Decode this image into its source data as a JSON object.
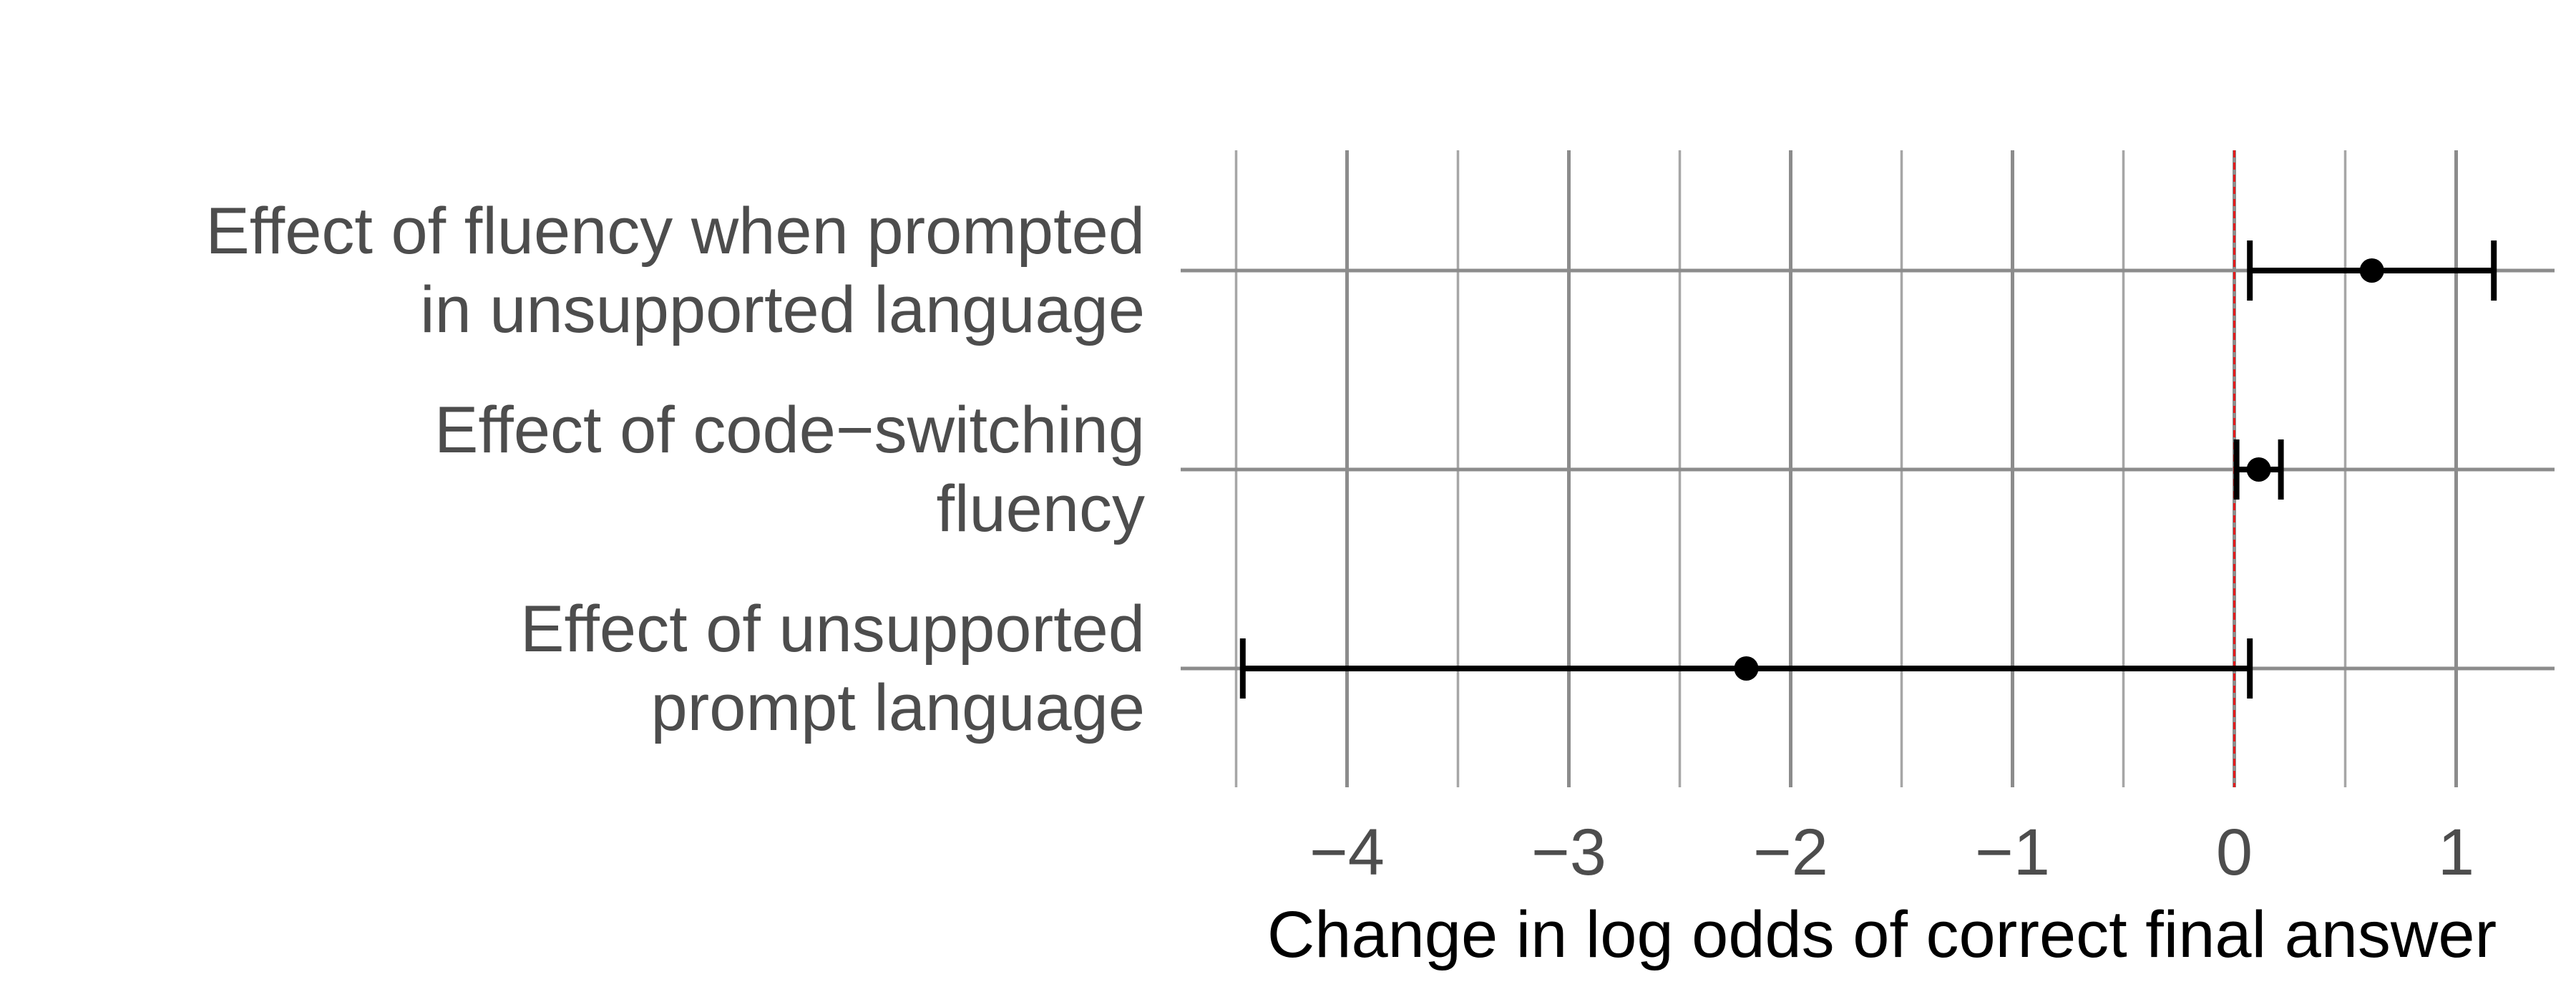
{
  "chart_data": {
    "type": "forest",
    "title": "",
    "xlabel": "Change in log odds of correct final answer",
    "ylabel": "",
    "xlim": [
      -4.5,
      1.45
    ],
    "xticks": [
      -4,
      -3,
      -2,
      -1,
      0,
      1
    ],
    "xtick_labels": [
      "−4",
      "−3",
      "−2",
      "−1",
      "0",
      "1"
    ],
    "reference_line": {
      "x": 0,
      "color": "#e41a1c",
      "style": "dashed"
    },
    "grid": true,
    "categories": [
      {
        "label_lines": [
          "Effect of fluency when prompted",
          "in unsupported language"
        ],
        "estimate": 0.62,
        "lower": 0.07,
        "upper": 1.17
      },
      {
        "label_lines": [
          "Effect of code−switching",
          "fluency"
        ],
        "estimate": 0.11,
        "lower": 0.01,
        "upper": 0.21
      },
      {
        "label_lines": [
          "Effect of unsupported",
          "prompt language"
        ],
        "estimate": -2.2,
        "lower": -4.47,
        "upper": 0.07
      }
    ],
    "colors": {
      "grid_major": "#8c8c8c",
      "grid_minor": "#a6a6a6",
      "point": "#000000",
      "reference": "#e41a1c"
    }
  }
}
